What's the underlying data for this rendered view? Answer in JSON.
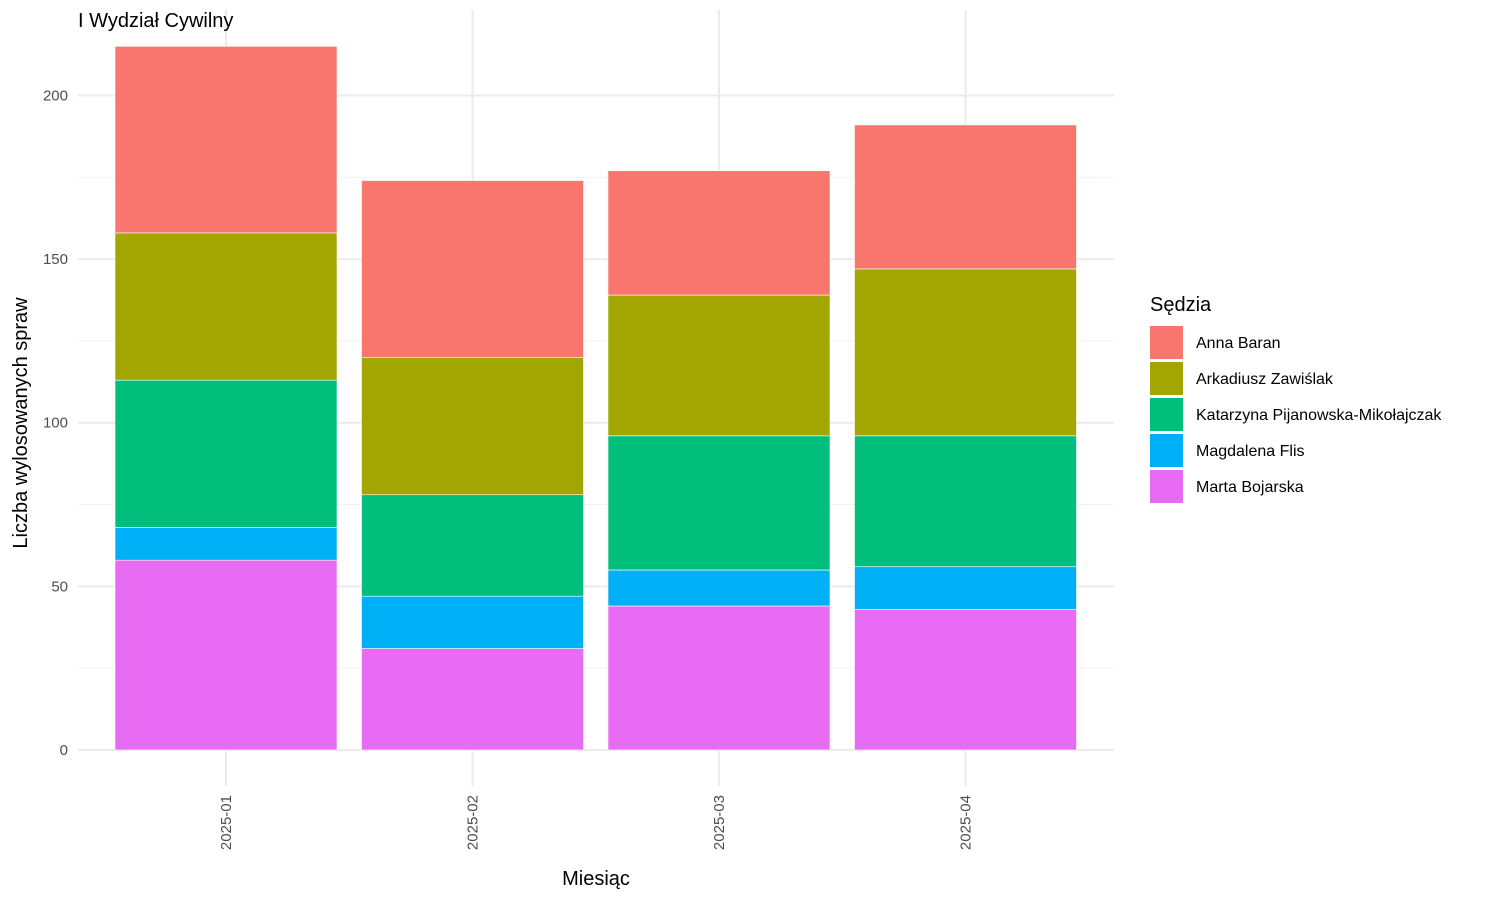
{
  "chart_data": {
    "type": "bar",
    "stacked": true,
    "title": "I Wydział Cywilny",
    "xlabel": "Miesiąc",
    "ylabel": "Liczba wylosowanych spraw",
    "categories": [
      "2025-01",
      "2025-02",
      "2025-03",
      "2025-04"
    ],
    "ylim": [
      0,
      215
    ],
    "yticks": [
      0,
      50,
      100,
      150,
      200
    ],
    "grid": true,
    "legend": {
      "title": "Sędzia",
      "position": "right"
    },
    "series": [
      {
        "name": "Marta Bojarska",
        "color": "#E76BF3",
        "values": [
          58,
          31,
          44,
          43
        ]
      },
      {
        "name": "Magdalena Flis",
        "color": "#00B0F6",
        "values": [
          10,
          16,
          11,
          13
        ]
      },
      {
        "name": "Katarzyna Pijanowska-Mikołajczak",
        "color": "#00BF7D",
        "values": [
          45,
          31,
          41,
          40
        ]
      },
      {
        "name": "Arkadiusz Zawiślak",
        "color": "#A3A500",
        "values": [
          45,
          42,
          43,
          51
        ]
      },
      {
        "name": "Anna Baran",
        "color": "#F8766D",
        "values": [
          57,
          54,
          38,
          44
        ]
      }
    ],
    "legend_order": [
      "Anna Baran",
      "Arkadiusz Zawiślak",
      "Katarzyna Pijanowska-Mikołajczak",
      "Magdalena Flis",
      "Marta Bojarska"
    ]
  }
}
